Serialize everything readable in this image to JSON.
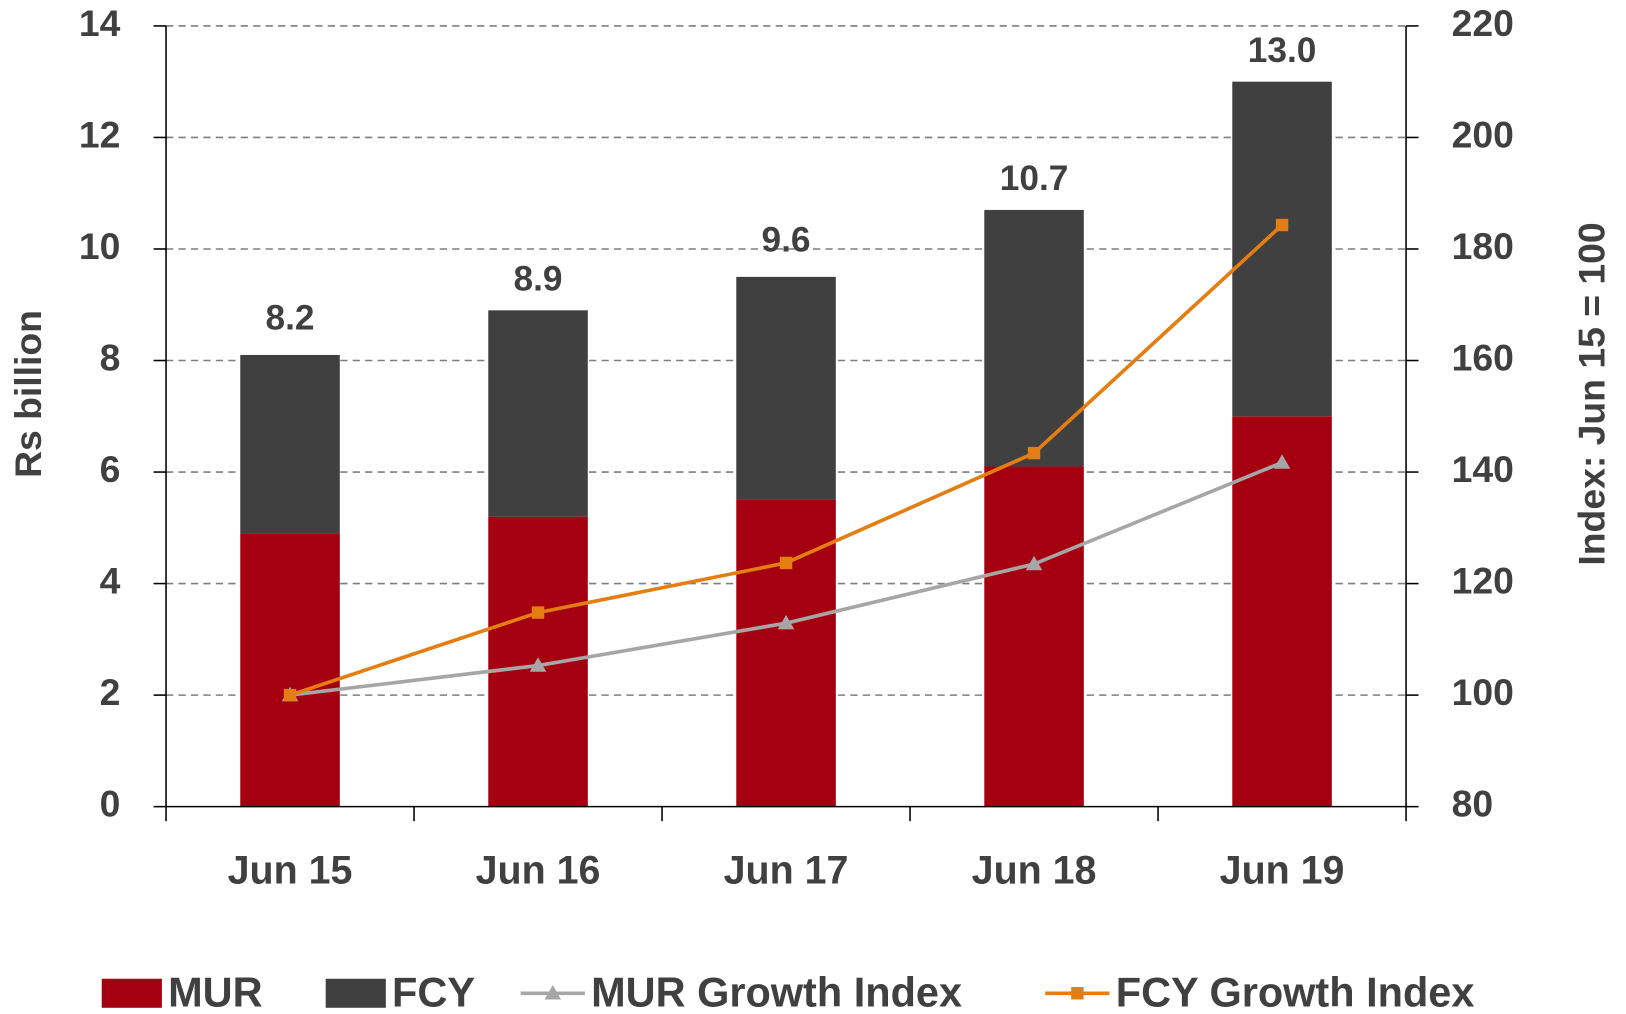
{
  "chart_data": {
    "type": "bar",
    "y_label": "Rs billion",
    "y2_label": "Index: Jun 15 = 100",
    "categories": [
      "Jun 15",
      "Jun 16",
      "Jun 17",
      "Jun 18",
      "Jun 19"
    ],
    "series": [
      {
        "name": "MUR",
        "type": "bar",
        "color": "#a50010",
        "values": [
          4.9,
          5.2,
          5.5,
          6.1,
          7.0
        ]
      },
      {
        "name": "FCY",
        "type": "bar",
        "color": "#404040",
        "values": [
          3.2,
          3.7,
          4.0,
          4.6,
          6.0
        ]
      },
      {
        "name": "MUR Growth Index",
        "type": "line",
        "axis": "y2",
        "marker": "triangle",
        "color": "#a6a6a6",
        "values": [
          100,
          105.3,
          112.9,
          123.5,
          141.7
        ]
      },
      {
        "name": "FCY Growth Index",
        "type": "line",
        "axis": "y2",
        "marker": "square",
        "color": "#e57e12",
        "values": [
          100,
          114.8,
          123.7,
          143.4,
          184.3
        ]
      }
    ],
    "totals": [
      8.2,
      8.9,
      9.6,
      10.7,
      13.0
    ],
    "value_labels": [
      "8.2",
      "8.9",
      "9.6",
      "10.7",
      "13.0"
    ],
    "ylim": [
      0,
      14
    ],
    "yticks": [
      0,
      2,
      4,
      6,
      8,
      10,
      12,
      14
    ],
    "y2lim": [
      80,
      220
    ],
    "y2ticks": [
      80,
      100,
      120,
      140,
      160,
      180,
      200,
      220
    ],
    "grid": true,
    "legend": "bottom"
  }
}
